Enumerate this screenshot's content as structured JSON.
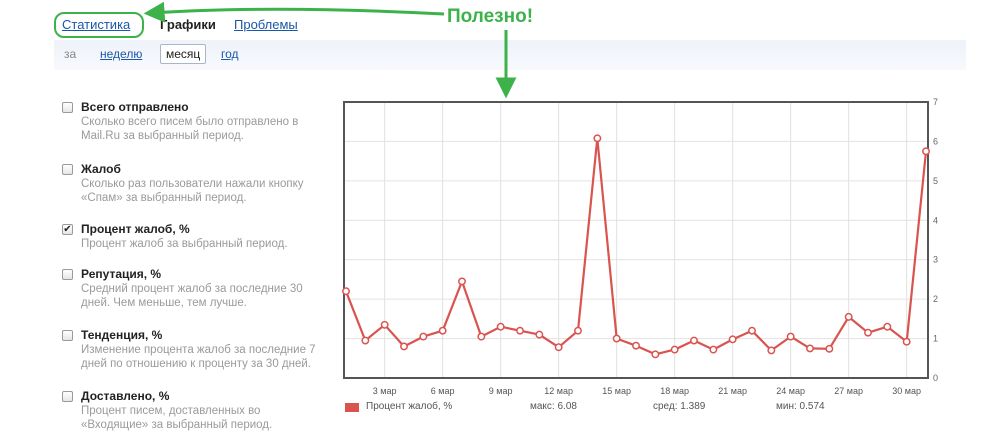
{
  "tabs": [
    {
      "label": "Статистика",
      "active": false
    },
    {
      "label": "Графики",
      "active": true
    },
    {
      "label": "Проблемы",
      "active": false
    }
  ],
  "annotation": "Полезно!",
  "period": {
    "label": "за",
    "options": [
      {
        "label": "неделю",
        "active": false
      },
      {
        "label": "месяц",
        "active": true
      },
      {
        "label": "год",
        "active": false
      }
    ]
  },
  "metrics": [
    {
      "title": "Всего отправлено",
      "desc": "Сколько всего писем было отправлено в Mail.Ru за выбранный период.",
      "checked": false
    },
    {
      "title": "Жалоб",
      "desc": "Сколько раз пользователи нажали кнопку «Спам» за выбранный период.",
      "checked": false
    },
    {
      "title": "Процент жалоб, %",
      "desc": "Процент жалоб за выбранный период.",
      "checked": true
    },
    {
      "title": "Репутация, %",
      "desc": "Средний процент жалоб за последние 30 дней. Чем меньше, тем лучше.",
      "checked": false
    },
    {
      "title": "Тенденция, %",
      "desc": "Изменение процента жалоб за последние 7 дней по отношению к проценту за 30 дней.",
      "checked": false
    },
    {
      "title": "Доставлено, %",
      "desc": "Процент писем, доставленных во «Входящие» за выбранный период.",
      "checked": false
    }
  ],
  "chart_data": {
    "type": "line",
    "color": "#d9534f",
    "x_ticks": [
      "3 мар",
      "6 мар",
      "9 мар",
      "12 мар",
      "15 мар",
      "18 мар",
      "21 мар",
      "24 мар",
      "27 мар",
      "30 мар"
    ],
    "y_ticks": [
      "0",
      "1",
      "2",
      "3",
      "4",
      "5",
      "6",
      "7"
    ],
    "ylim": [
      0,
      7
    ],
    "grid": true,
    "series": [
      {
        "name": "Процент жалоб, %",
        "values": [
          2.2,
          0.95,
          1.35,
          0.8,
          1.05,
          1.2,
          2.45,
          1.05,
          1.3,
          1.2,
          1.1,
          0.78,
          1.2,
          6.08,
          1.0,
          0.82,
          0.6,
          0.72,
          0.95,
          0.72,
          0.98,
          1.2,
          0.7,
          1.05,
          0.75,
          0.74,
          1.55,
          1.15,
          1.3,
          0.92,
          5.75
        ]
      }
    ],
    "legend": {
      "label": "Процент жалоб, %"
    },
    "stats": {
      "max": "макс: 6.08",
      "avg": "сред: 1.389",
      "min": "мин: 0.574"
    }
  }
}
